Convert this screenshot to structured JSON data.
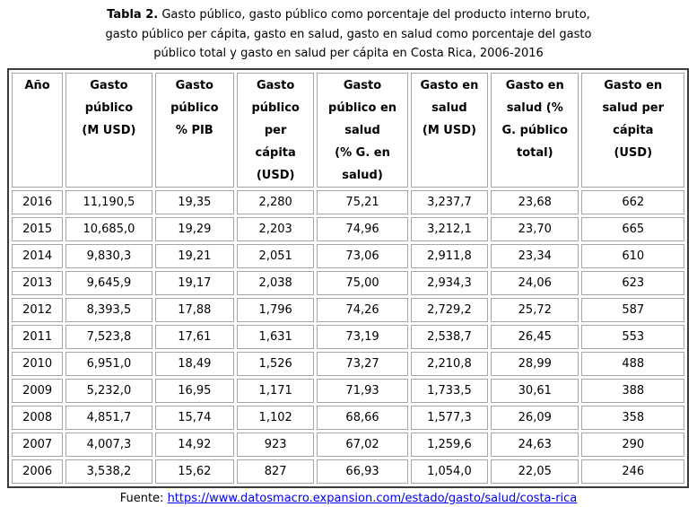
{
  "caption": {
    "label": "Tabla 2.",
    "text": " Gasto público, gasto público como porcentaje del producto interno bruto,\ngasto público per cápita, gasto en salud, gasto en salud como porcentaje del gasto\npúblico total y gasto en salud per cápita en Costa Rica, 2006-2016"
  },
  "table": {
    "columns": [
      "Año",
      "Gasto\npúblico\n(M USD)",
      "Gasto\npúblico\n% PIB",
      "Gasto\npúblico\nper\ncápita\n(USD)",
      "Gasto\npúblico en\nsalud\n(% G. en\nsalud)",
      "Gasto en\nsalud\n(M USD)",
      "Gasto en\nsalud (%\nG. público\ntotal)",
      "Gasto en\nsalud per\ncápita\n(USD)"
    ],
    "rows": [
      [
        "2016",
        "11,190,5",
        "19,35",
        "2,280",
        "75,21",
        "3,237,7",
        "23,68",
        "662"
      ],
      [
        "2015",
        "10,685,0",
        "19,29",
        "2,203",
        "74,96",
        "3,212,1",
        "23,70",
        "665"
      ],
      [
        "2014",
        "9,830,3",
        "19,21",
        "2,051",
        "73,06",
        "2,911,8",
        "23,34",
        "610"
      ],
      [
        "2013",
        "9,645,9",
        "19,17",
        "2,038",
        "75,00",
        "2,934,3",
        "24,06",
        "623"
      ],
      [
        "2012",
        "8,393,5",
        "17,88",
        "1,796",
        "74,26",
        "2,729,2",
        "25,72",
        "587"
      ],
      [
        "2011",
        "7,523,8",
        "17,61",
        "1,631",
        "73,19",
        "2,538,7",
        "26,45",
        "553"
      ],
      [
        "2010",
        "6,951,0",
        "18,49",
        "1,526",
        "73,27",
        "2,210,8",
        "28,99",
        "488"
      ],
      [
        "2009",
        "5,232,0",
        "16,95",
        "1,171",
        "71,93",
        "1,733,5",
        "30,61",
        "388"
      ],
      [
        "2008",
        "4,851,7",
        "15,74",
        "1,102",
        "68,66",
        "1,577,3",
        "26,09",
        "358"
      ],
      [
        "2007",
        "4,007,3",
        "14,92",
        "923",
        "67,02",
        "1,259,6",
        "24,63",
        "290"
      ],
      [
        "2006",
        "3,538,2",
        "15,62",
        "827",
        "66,93",
        "1,054,0",
        "22,05",
        "246"
      ]
    ]
  },
  "footer": {
    "label": "Fuente:",
    "link_text": "https://www.datosmacro.expansion.com/estado/gasto/salud/costa-rica"
  },
  "colors": {
    "link": "#0000ee",
    "cell_border": "#a6a6a6",
    "outer_border": "#3b3b3b",
    "text": "#000000",
    "background": "#ffffff"
  }
}
